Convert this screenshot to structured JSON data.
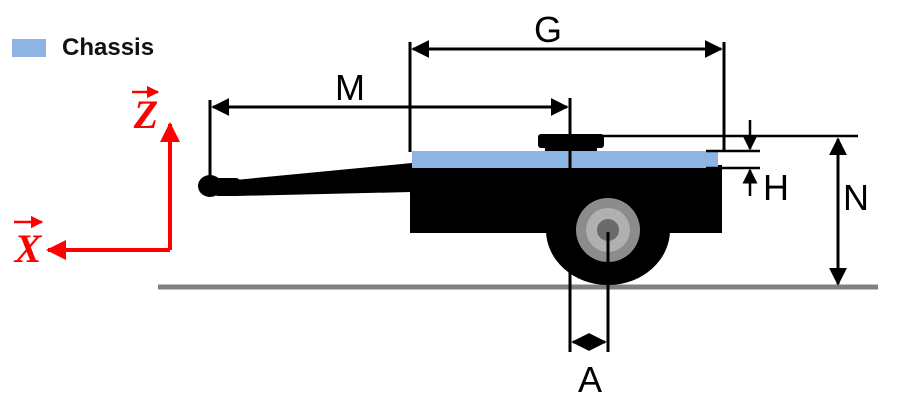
{
  "legend": {
    "chassis_label": "Chassis",
    "chassis_color": "#8eb4e3"
  },
  "dimensions": {
    "g": "G",
    "m": "M",
    "h": "H",
    "n": "N",
    "a": "A"
  },
  "axes": {
    "z": "Z",
    "x": "X",
    "color": "#ff0000"
  },
  "colors": {
    "body": "#000000",
    "ground": "#808080",
    "chassis": "#8eb4e3",
    "wheel_hub": "#8c8c8c"
  }
}
